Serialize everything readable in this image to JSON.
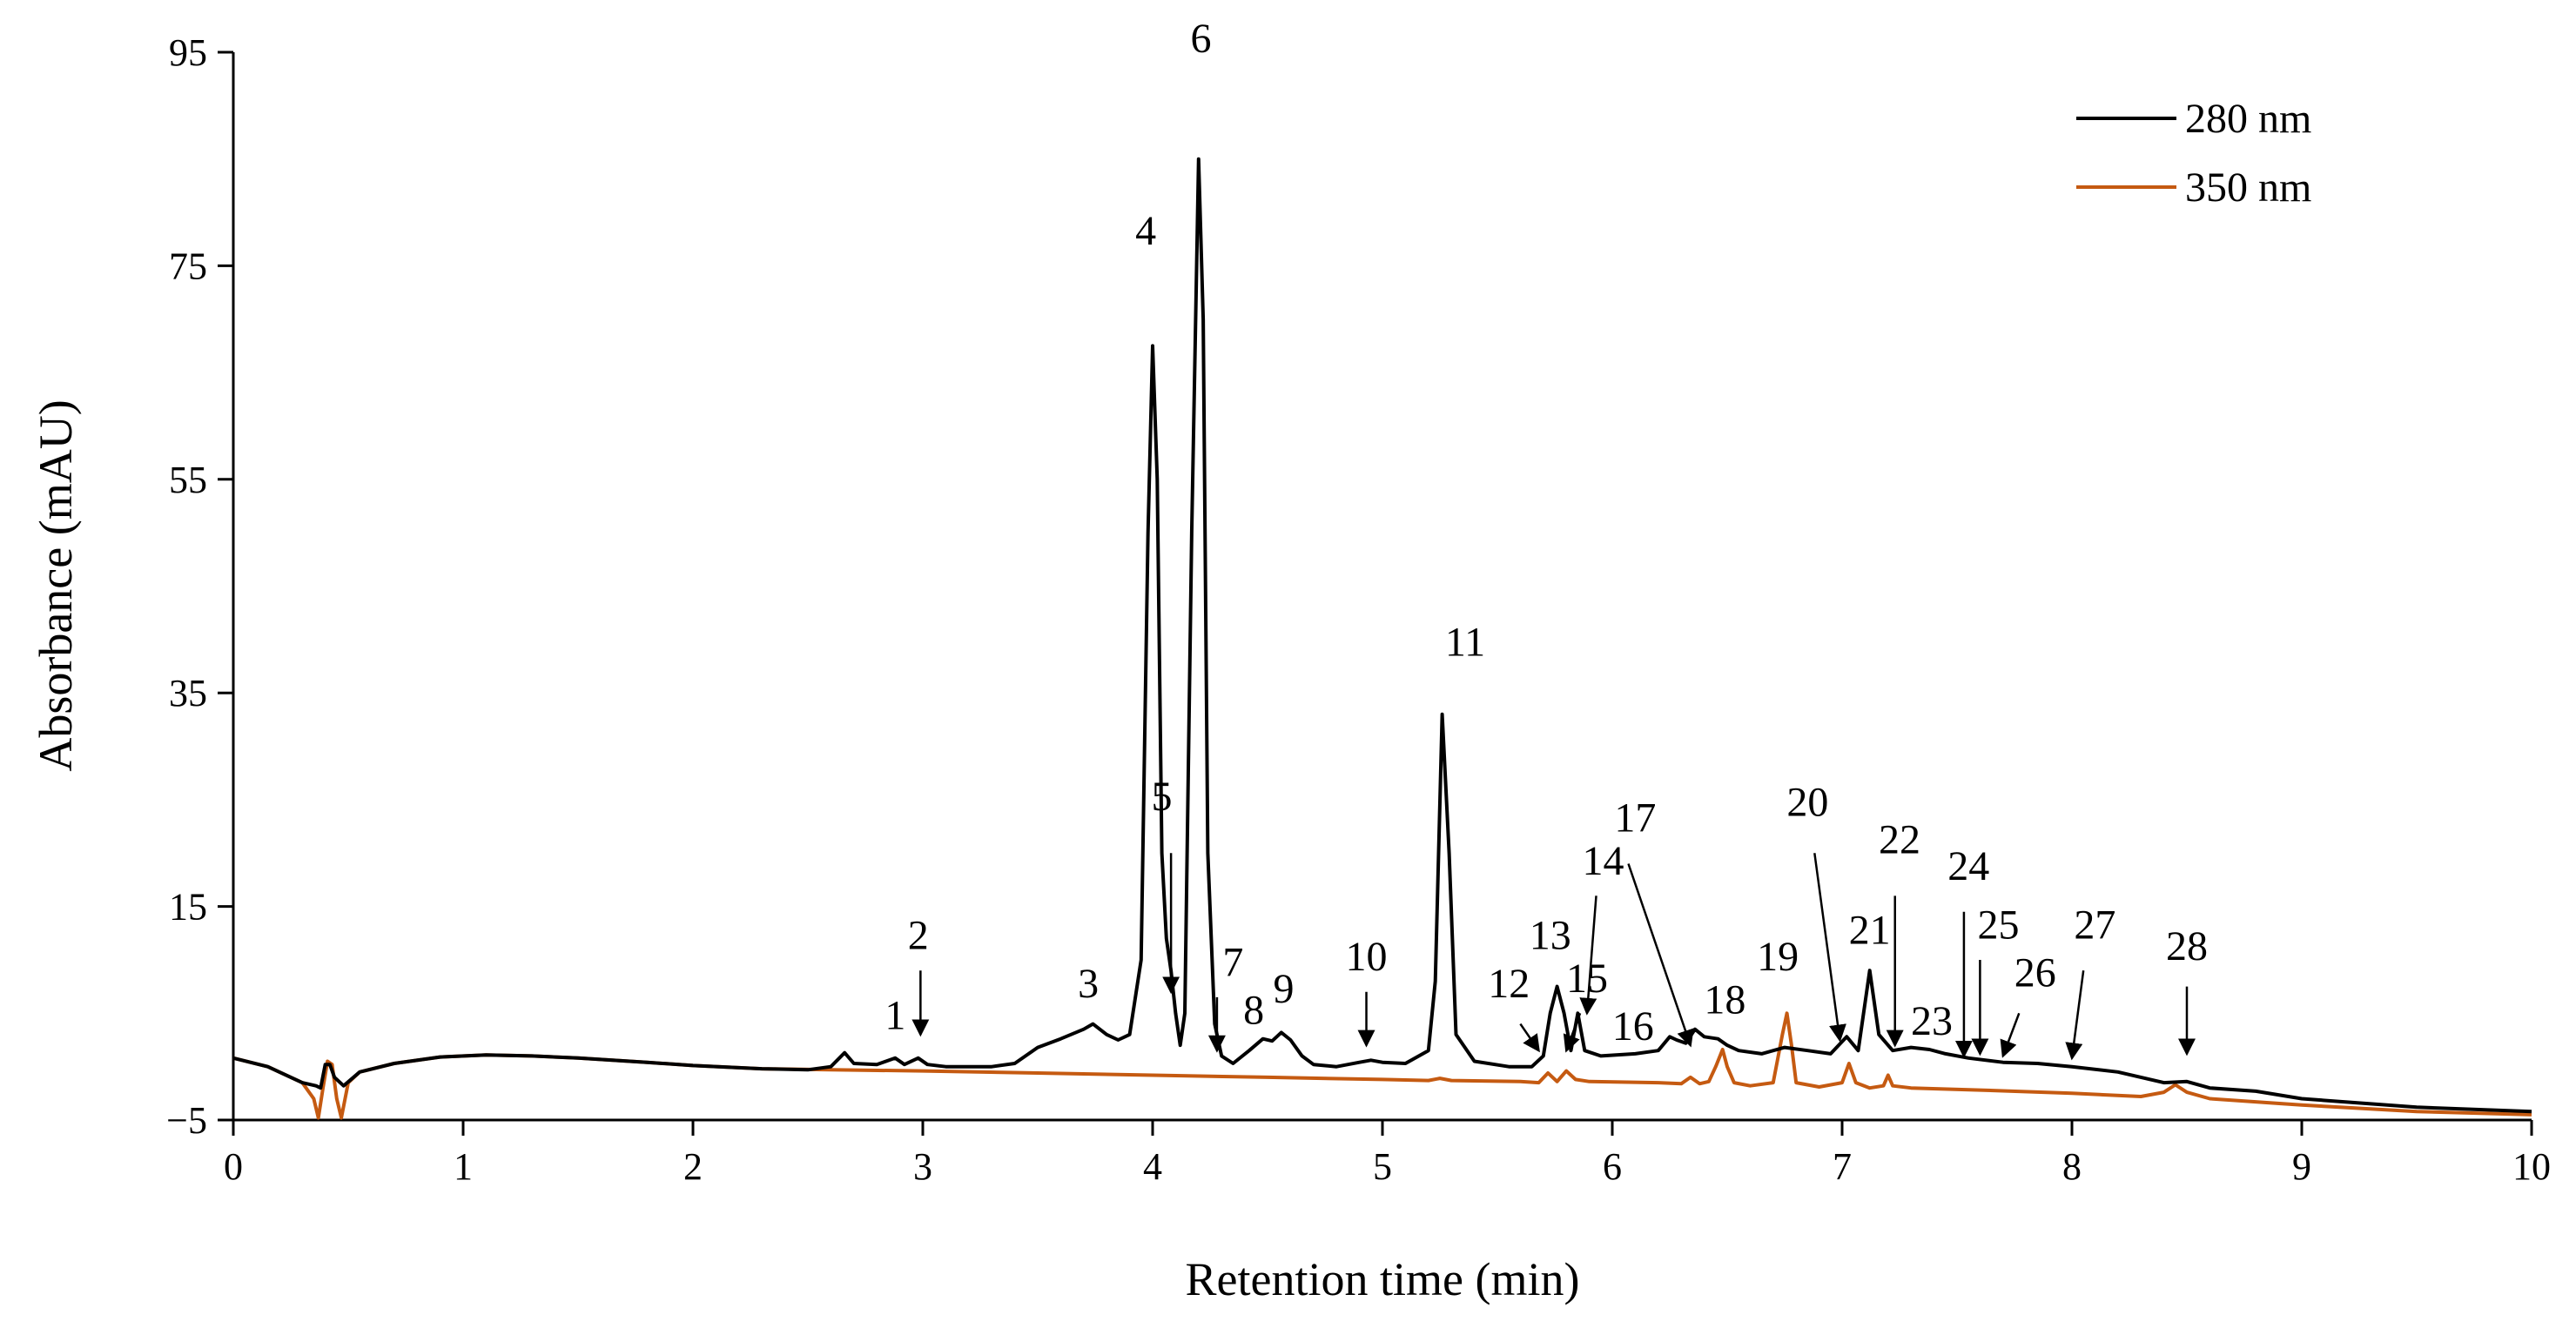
{
  "chart_data": {
    "type": "line",
    "title": "",
    "xlabel": "Retention time (min)",
    "ylabel": "Absorbance (mAU)",
    "xlim": [
      0,
      10
    ],
    "ylim": [
      -5,
      95
    ],
    "x_ticks": [
      0,
      1,
      2,
      3,
      4,
      5,
      6,
      7,
      8,
      9,
      10
    ],
    "x_tick_labels": [
      "0",
      "1",
      "2",
      "3",
      "4",
      "5",
      "6",
      "7",
      "8",
      "9",
      "10"
    ],
    "y_ticks": [
      -5,
      15,
      35,
      55,
      75,
      95
    ],
    "y_tick_labels": [
      "−5",
      "15",
      "35",
      "55",
      "75",
      "95"
    ],
    "grid": false,
    "legend_position": "top-right",
    "series": [
      {
        "name": "280 nm",
        "color": "#000000",
        "points": [
          [
            0,
            0.8
          ],
          [
            0.15,
            0
          ],
          [
            0.3,
            -1.5
          ],
          [
            0.36,
            -1.8
          ],
          [
            0.38,
            -2
          ],
          [
            0.4,
            0.2
          ],
          [
            0.42,
            0.2
          ],
          [
            0.44,
            -1
          ],
          [
            0.48,
            -1.8
          ],
          [
            0.55,
            -0.5
          ],
          [
            0.7,
            0.3
          ],
          [
            0.9,
            0.9
          ],
          [
            1.1,
            1.1
          ],
          [
            1.3,
            1
          ],
          [
            1.5,
            0.8
          ],
          [
            1.8,
            0.4
          ],
          [
            2.0,
            0.1
          ],
          [
            2.3,
            -0.2
          ],
          [
            2.5,
            -0.3
          ],
          [
            2.6,
            0
          ],
          [
            2.66,
            1.3
          ],
          [
            2.7,
            0.3
          ],
          [
            2.8,
            0.2
          ],
          [
            2.88,
            0.8
          ],
          [
            2.92,
            0.2
          ],
          [
            2.98,
            0.8
          ],
          [
            3.02,
            0.2
          ],
          [
            3.1,
            0
          ],
          [
            3.3,
            0
          ],
          [
            3.4,
            0.3
          ],
          [
            3.5,
            1.8
          ],
          [
            3.6,
            2.6
          ],
          [
            3.7,
            3.5
          ],
          [
            3.74,
            4
          ],
          [
            3.8,
            3
          ],
          [
            3.85,
            2.5
          ],
          [
            3.9,
            3
          ],
          [
            3.95,
            10
          ],
          [
            3.98,
            50
          ],
          [
            4.0,
            67.5
          ],
          [
            4.02,
            55
          ],
          [
            4.04,
            20
          ],
          [
            4.06,
            12
          ],
          [
            4.08,
            9
          ],
          [
            4.1,
            5
          ],
          [
            4.12,
            2
          ],
          [
            4.14,
            5
          ],
          [
            4.17,
            50
          ],
          [
            4.2,
            85
          ],
          [
            4.22,
            70
          ],
          [
            4.24,
            20
          ],
          [
            4.27,
            4
          ],
          [
            4.3,
            1
          ],
          [
            4.35,
            0.3
          ],
          [
            4.42,
            1.5
          ],
          [
            4.48,
            2.6
          ],
          [
            4.52,
            2.4
          ],
          [
            4.56,
            3.2
          ],
          [
            4.6,
            2.5
          ],
          [
            4.65,
            1
          ],
          [
            4.7,
            0.2
          ],
          [
            4.8,
            0
          ],
          [
            4.9,
            0.4
          ],
          [
            4.95,
            0.6
          ],
          [
            5.0,
            0.4
          ],
          [
            5.1,
            0.3
          ],
          [
            5.2,
            1.5
          ],
          [
            5.23,
            8
          ],
          [
            5.26,
            33
          ],
          [
            5.29,
            20
          ],
          [
            5.32,
            3
          ],
          [
            5.4,
            0.5
          ],
          [
            5.55,
            0
          ],
          [
            5.65,
            0
          ],
          [
            5.7,
            1
          ],
          [
            5.73,
            5
          ],
          [
            5.76,
            7.5
          ],
          [
            5.79,
            5
          ],
          [
            5.82,
            1.5
          ],
          [
            5.85,
            5
          ],
          [
            5.88,
            1.5
          ],
          [
            5.95,
            1
          ],
          [
            6.1,
            1.2
          ],
          [
            6.2,
            1.5
          ],
          [
            6.25,
            2.8
          ],
          [
            6.28,
            2.5
          ],
          [
            6.32,
            2.2
          ],
          [
            6.36,
            3.5
          ],
          [
            6.4,
            2.8
          ],
          [
            6.46,
            2.6
          ],
          [
            6.5,
            2
          ],
          [
            6.55,
            1.5
          ],
          [
            6.65,
            1.2
          ],
          [
            6.75,
            1.8
          ],
          [
            6.85,
            1.5
          ],
          [
            6.95,
            1.2
          ],
          [
            7.02,
            2.8
          ],
          [
            7.07,
            1.5
          ],
          [
            7.12,
            9
          ],
          [
            7.16,
            3
          ],
          [
            7.22,
            1.5
          ],
          [
            7.3,
            1.8
          ],
          [
            7.38,
            1.6
          ],
          [
            7.45,
            1.2
          ],
          [
            7.55,
            0.8
          ],
          [
            7.7,
            0.4
          ],
          [
            7.85,
            0.3
          ],
          [
            8.0,
            0
          ],
          [
            8.2,
            -0.5
          ],
          [
            8.4,
            -1.5
          ],
          [
            8.5,
            -1.4
          ],
          [
            8.6,
            -2
          ],
          [
            8.8,
            -2.3
          ],
          [
            9.0,
            -3
          ],
          [
            9.5,
            -3.8
          ],
          [
            10,
            -4.2
          ]
        ]
      },
      {
        "name": "350 nm",
        "color": "#C55A11",
        "points": [
          [
            0,
            0.8
          ],
          [
            0.15,
            0
          ],
          [
            0.3,
            -1.5
          ],
          [
            0.35,
            -3
          ],
          [
            0.37,
            -4.8
          ],
          [
            0.39,
            -2
          ],
          [
            0.41,
            0.5
          ],
          [
            0.43,
            0.2
          ],
          [
            0.45,
            -3
          ],
          [
            0.47,
            -4.8
          ],
          [
            0.5,
            -1.5
          ],
          [
            0.55,
            -0.5
          ],
          [
            0.7,
            0.3
          ],
          [
            0.9,
            0.9
          ],
          [
            1.1,
            1.1
          ],
          [
            1.3,
            1
          ],
          [
            1.5,
            0.8
          ],
          [
            1.8,
            0.4
          ],
          [
            2.0,
            0.1
          ],
          [
            2.3,
            -0.2
          ],
          [
            2.6,
            -0.3
          ],
          [
            3.0,
            -0.4
          ],
          [
            3.5,
            -0.6
          ],
          [
            4.0,
            -0.8
          ],
          [
            4.5,
            -1
          ],
          [
            5.0,
            -1.2
          ],
          [
            5.2,
            -1.3
          ],
          [
            5.25,
            -1.1
          ],
          [
            5.3,
            -1.3
          ],
          [
            5.6,
            -1.4
          ],
          [
            5.68,
            -1.5
          ],
          [
            5.72,
            -0.6
          ],
          [
            5.76,
            -1.4
          ],
          [
            5.8,
            -0.4
          ],
          [
            5.84,
            -1.2
          ],
          [
            5.9,
            -1.4
          ],
          [
            6.2,
            -1.5
          ],
          [
            6.3,
            -1.6
          ],
          [
            6.34,
            -1
          ],
          [
            6.38,
            -1.6
          ],
          [
            6.42,
            -1.4
          ],
          [
            6.45,
            0
          ],
          [
            6.48,
            1.6
          ],
          [
            6.5,
            0
          ],
          [
            6.53,
            -1.5
          ],
          [
            6.6,
            -1.8
          ],
          [
            6.7,
            -1.5
          ],
          [
            6.74,
            3
          ],
          [
            6.76,
            5
          ],
          [
            6.78,
            2
          ],
          [
            6.8,
            -1.5
          ],
          [
            6.9,
            -1.9
          ],
          [
            7.0,
            -1.5
          ],
          [
            7.03,
            0.3
          ],
          [
            7.06,
            -1.5
          ],
          [
            7.12,
            -2
          ],
          [
            7.18,
            -1.8
          ],
          [
            7.2,
            -0.8
          ],
          [
            7.22,
            -1.8
          ],
          [
            7.3,
            -2
          ],
          [
            7.6,
            -2.2
          ],
          [
            8.0,
            -2.5
          ],
          [
            8.3,
            -2.8
          ],
          [
            8.4,
            -2.4
          ],
          [
            8.45,
            -1.7
          ],
          [
            8.5,
            -2.4
          ],
          [
            8.6,
            -3
          ],
          [
            9.0,
            -3.6
          ],
          [
            9.5,
            -4.2
          ],
          [
            10,
            -4.5
          ]
        ]
      }
    ],
    "peak_labels": [
      {
        "label": "1",
        "x": 2.88,
        "y": 3.5
      },
      {
        "label": "2",
        "x": 2.98,
        "y": 11
      },
      {
        "label": "3",
        "x": 3.72,
        "y": 6.5
      },
      {
        "label": "4",
        "x": 3.97,
        "y": 77
      },
      {
        "label": "5",
        "x": 4.04,
        "y": 24
      },
      {
        "label": "6",
        "x": 4.21,
        "y": 95
      },
      {
        "label": "7",
        "x": 4.35,
        "y": 8.5
      },
      {
        "label": "8",
        "x": 4.44,
        "y": 4
      },
      {
        "label": "9",
        "x": 4.57,
        "y": 6
      },
      {
        "label": "10",
        "x": 4.93,
        "y": 9
      },
      {
        "label": "11",
        "x": 5.36,
        "y": 38.5
      },
      {
        "label": "12",
        "x": 5.55,
        "y": 6.5
      },
      {
        "label": "13",
        "x": 5.73,
        "y": 11
      },
      {
        "label": "14",
        "x": 5.96,
        "y": 18
      },
      {
        "label": "15",
        "x": 5.89,
        "y": 7
      },
      {
        "label": "16",
        "x": 6.09,
        "y": 2.5
      },
      {
        "label": "17",
        "x": 6.1,
        "y": 22
      },
      {
        "label": "18",
        "x": 6.49,
        "y": 5
      },
      {
        "label": "19",
        "x": 6.72,
        "y": 9
      },
      {
        "label": "20",
        "x": 6.85,
        "y": 23.5
      },
      {
        "label": "21",
        "x": 7.12,
        "y": 11.5
      },
      {
        "label": "22",
        "x": 7.25,
        "y": 20
      },
      {
        "label": "23",
        "x": 7.39,
        "y": 3
      },
      {
        "label": "24",
        "x": 7.55,
        "y": 17.5
      },
      {
        "label": "25",
        "x": 7.68,
        "y": 12
      },
      {
        "label": "26",
        "x": 7.84,
        "y": 7.5
      },
      {
        "label": "27",
        "x": 8.1,
        "y": 12
      },
      {
        "label": "28",
        "x": 8.5,
        "y": 10
      }
    ],
    "arrows": [
      {
        "from": [
          2.99,
          9
        ],
        "to": [
          2.99,
          3
        ]
      },
      {
        "from": [
          4.08,
          20
        ],
        "to": [
          4.08,
          7
        ]
      },
      {
        "from": [
          4.28,
          6.5
        ],
        "to": [
          4.28,
          1.5
        ]
      },
      {
        "from": [
          4.93,
          7
        ],
        "to": [
          4.93,
          2
        ]
      },
      {
        "from": [
          5.6,
          4
        ],
        "to": [
          5.68,
          1.5
        ]
      },
      {
        "from": [
          5.86,
          5
        ],
        "to": [
          5.8,
          1.5
        ]
      },
      {
        "from": [
          5.93,
          16
        ],
        "to": [
          5.89,
          5
        ]
      },
      {
        "from": [
          6.07,
          19
        ],
        "to": [
          6.34,
          2
        ]
      },
      {
        "from": [
          6.88,
          20
        ],
        "to": [
          6.99,
          2.5
        ]
      },
      {
        "from": [
          7.23,
          16
        ],
        "to": [
          7.23,
          2
        ]
      },
      {
        "from": [
          7.53,
          14.5
        ],
        "to": [
          7.53,
          1
        ]
      },
      {
        "from": [
          7.6,
          10
        ],
        "to": [
          7.6,
          1.2
        ]
      },
      {
        "from": [
          7.77,
          5
        ],
        "to": [
          7.7,
          1
        ]
      },
      {
        "from": [
          8.05,
          9
        ],
        "to": [
          8.0,
          0.8
        ]
      },
      {
        "from": [
          8.5,
          7.5
        ],
        "to": [
          8.5,
          1.2
        ]
      }
    ]
  }
}
